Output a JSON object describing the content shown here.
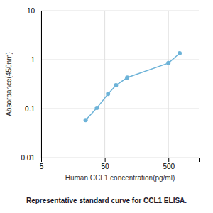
{
  "chart_data": {
    "type": "line",
    "title": "Representative standard curve for CCL1 ELISA.",
    "x_label": "Human CCL1 concentration(pg/ml)",
    "y_label": "Absorbance(450nm)",
    "x": [
      25,
      37.5,
      56.25,
      75,
      112.5,
      500,
      750
    ],
    "values": [
      0.058,
      0.103,
      0.2,
      0.3,
      0.43,
      0.85,
      1.35
    ],
    "color": "#6db3d8",
    "marker": "circle",
    "log": true,
    "xlim": [
      5,
      1500
    ],
    "ylim": [
      0.01,
      10
    ],
    "xticks": [
      5,
      50,
      500
    ],
    "yticks": [
      0.01,
      0.1,
      1,
      10
    ],
    "grid": true
  }
}
